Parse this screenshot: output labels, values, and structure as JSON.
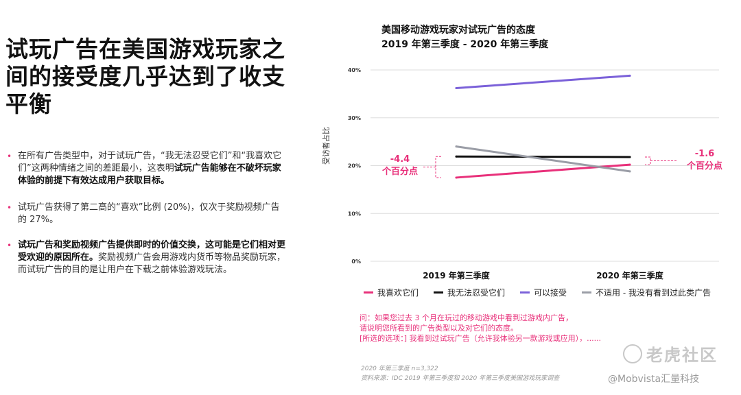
{
  "left": {
    "title": "试玩广告在美国游戏玩家之间的接受度几乎达到了收支平衡",
    "bullets": [
      {
        "pre": "在所有广告类型中，对于试玩广告，“我无法忍受它们”和“我喜欢它们”这两种情绪之间的差距最小，这表明",
        "bold": "试玩广告能够在不破坏玩家体验的前提下有效达成用户获取目标。",
        "post": ""
      },
      {
        "pre": "试玩广告获得了第二高的“喜欢”比例 (20%)，仅次于奖励视频广告的 27%。",
        "bold": "",
        "post": ""
      },
      {
        "pre": "",
        "bold": "试玩广告和奖励视频广告提供即时的价值交换，这可能是它们相对更受欢迎的原因所在。",
        "post": "奖励视频广告会用游戏内货币等物品奖励玩家，而试玩广告的目的是让用户在下载之前体验游戏玩法。"
      }
    ]
  },
  "chart_data": {
    "type": "line",
    "title": "美国移动游戏玩家对试玩广告的态度",
    "subtitle": "2019 年第三季度 - 2020 年第三季度",
    "xlabel": "",
    "ylabel": "受访者占比",
    "x": [
      "2019 年第三季度",
      "2020 年第三季度"
    ],
    "ylim": [
      0,
      40
    ],
    "yticks": [
      "0%",
      "10%",
      "20%",
      "30%",
      "40%"
    ],
    "grid": true,
    "series": [
      {
        "name": "我喜欢它们",
        "values": [
          17.5,
          20.2
        ],
        "color": "#e8307a"
      },
      {
        "name": "我无法忍受它们",
        "values": [
          21.9,
          21.8
        ],
        "color": "#111111"
      },
      {
        "name": "可以接受",
        "values": [
          36.2,
          38.8
        ],
        "color": "#7b61d9"
      },
      {
        "name": "不适用 - 我没有看到过此类广告",
        "values": [
          24.0,
          18.8
        ],
        "color": "#9a9da6"
      }
    ],
    "annotations": [
      {
        "line1": "-4.4",
        "line2": "个百分点"
      },
      {
        "line1": "-1.6",
        "line2": "个百分点"
      }
    ]
  },
  "question": {
    "line1": "问：如果您过去 3 个月在玩过的移动游戏中看到过游戏内广告，",
    "line2": "请说明您所看到的广告类型以及对它们的态度。",
    "line3": "[所选的选项：] 我看到过试玩广告（允许我体验另一款游戏或应用），......"
  },
  "note": {
    "line1": "2020 年第三季度 n=3,322",
    "line2": "资料来源：IDC 2019 年第三季度和 2020 年第三季度美国游戏玩家调查"
  },
  "watermark": "老虎社区",
  "credit": "@Mobvista汇量科技"
}
